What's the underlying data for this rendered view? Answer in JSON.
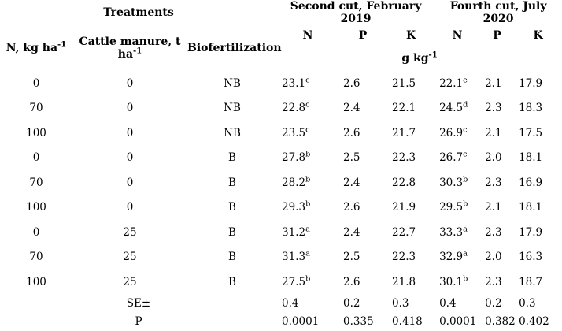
{
  "page": {
    "background_color": "#ffffff",
    "text_color": "#000000"
  },
  "table": {
    "header": {
      "treatments": "Treatments",
      "group_2019": "Second cut, February 2019",
      "group_2020": "Fourth cut, July 2020",
      "treatment_cols": [
        {
          "label": "N, kg ha",
          "sup": "-1"
        },
        {
          "label": "Cattle manure, t ha",
          "sup": "-1"
        },
        {
          "label": "Biofertilization",
          "sup": ""
        }
      ],
      "nutrient_cols": [
        "N",
        "P",
        "K",
        "N",
        "P",
        "K"
      ],
      "unit": {
        "label": "g kg",
        "sup": "-1"
      }
    },
    "rows": [
      {
        "n": "0",
        "manure": "0",
        "bio": "NB",
        "values": [
          {
            "v": "23.1",
            "sup": "c"
          },
          {
            "v": "2.6",
            "sup": ""
          },
          {
            "v": "21.5",
            "sup": ""
          },
          {
            "v": "22.1",
            "sup": "e"
          },
          {
            "v": "2.1",
            "sup": ""
          },
          {
            "v": "17.9",
            "sup": ""
          }
        ]
      },
      {
        "n": "70",
        "manure": "0",
        "bio": "NB",
        "values": [
          {
            "v": "22.8",
            "sup": "c"
          },
          {
            "v": "2.4",
            "sup": ""
          },
          {
            "v": "22.1",
            "sup": ""
          },
          {
            "v": "24.5",
            "sup": "d"
          },
          {
            "v": "2.3",
            "sup": ""
          },
          {
            "v": "18.3",
            "sup": ""
          }
        ]
      },
      {
        "n": "100",
        "manure": "0",
        "bio": "NB",
        "values": [
          {
            "v": "23.5",
            "sup": "c"
          },
          {
            "v": "2.6",
            "sup": ""
          },
          {
            "v": "21.7",
            "sup": ""
          },
          {
            "v": "26.9",
            "sup": "c"
          },
          {
            "v": "2.1",
            "sup": ""
          },
          {
            "v": "17.5",
            "sup": ""
          }
        ]
      },
      {
        "n": "0",
        "manure": "0",
        "bio": "B",
        "values": [
          {
            "v": "27.8",
            "sup": "b"
          },
          {
            "v": "2.5",
            "sup": ""
          },
          {
            "v": "22.3",
            "sup": ""
          },
          {
            "v": "26.7",
            "sup": "c"
          },
          {
            "v": "2.0",
            "sup": ""
          },
          {
            "v": "18.1",
            "sup": ""
          }
        ]
      },
      {
        "n": "70",
        "manure": "0",
        "bio": "B",
        "values": [
          {
            "v": "28.2",
            "sup": "b"
          },
          {
            "v": "2.4",
            "sup": ""
          },
          {
            "v": "22.8",
            "sup": ""
          },
          {
            "v": "30.3",
            "sup": "b"
          },
          {
            "v": "2.3",
            "sup": ""
          },
          {
            "v": "16.9",
            "sup": ""
          }
        ]
      },
      {
        "n": "100",
        "manure": "0",
        "bio": "B",
        "values": [
          {
            "v": "29.3",
            "sup": "b"
          },
          {
            "v": "2.6",
            "sup": ""
          },
          {
            "v": "21.9",
            "sup": ""
          },
          {
            "v": "29.5",
            "sup": "b"
          },
          {
            "v": "2.1",
            "sup": ""
          },
          {
            "v": "18.1",
            "sup": ""
          }
        ]
      },
      {
        "n": "0",
        "manure": "25",
        "bio": "B",
        "values": [
          {
            "v": "31.2",
            "sup": "a"
          },
          {
            "v": "2.4",
            "sup": ""
          },
          {
            "v": "22.7",
            "sup": ""
          },
          {
            "v": "33.3",
            "sup": "a"
          },
          {
            "v": "2.3",
            "sup": ""
          },
          {
            "v": "17.9",
            "sup": ""
          }
        ]
      },
      {
        "n": "70",
        "manure": "25",
        "bio": "B",
        "values": [
          {
            "v": "31.3",
            "sup": "a"
          },
          {
            "v": "2.5",
            "sup": ""
          },
          {
            "v": "22.3",
            "sup": ""
          },
          {
            "v": "32.9",
            "sup": "a"
          },
          {
            "v": "2.0",
            "sup": ""
          },
          {
            "v": "16.3",
            "sup": ""
          }
        ]
      },
      {
        "n": "100",
        "manure": "25",
        "bio": "B",
        "values": [
          {
            "v": "27.5",
            "sup": "b"
          },
          {
            "v": "2.6",
            "sup": ""
          },
          {
            "v": "21.8",
            "sup": ""
          },
          {
            "v": "30.1",
            "sup": "b"
          },
          {
            "v": "2.3",
            "sup": ""
          },
          {
            "v": "18.7",
            "sup": ""
          }
        ]
      }
    ],
    "stat_rows": [
      {
        "label": "SE±",
        "values": [
          "0.4",
          "0.2",
          "0.3",
          "0.4",
          "0.2",
          "0.3"
        ]
      },
      {
        "label": "P",
        "values": [
          "0.0001",
          "0.335",
          "0.418",
          "0.0001",
          "0.382",
          "0.402"
        ]
      }
    ]
  }
}
